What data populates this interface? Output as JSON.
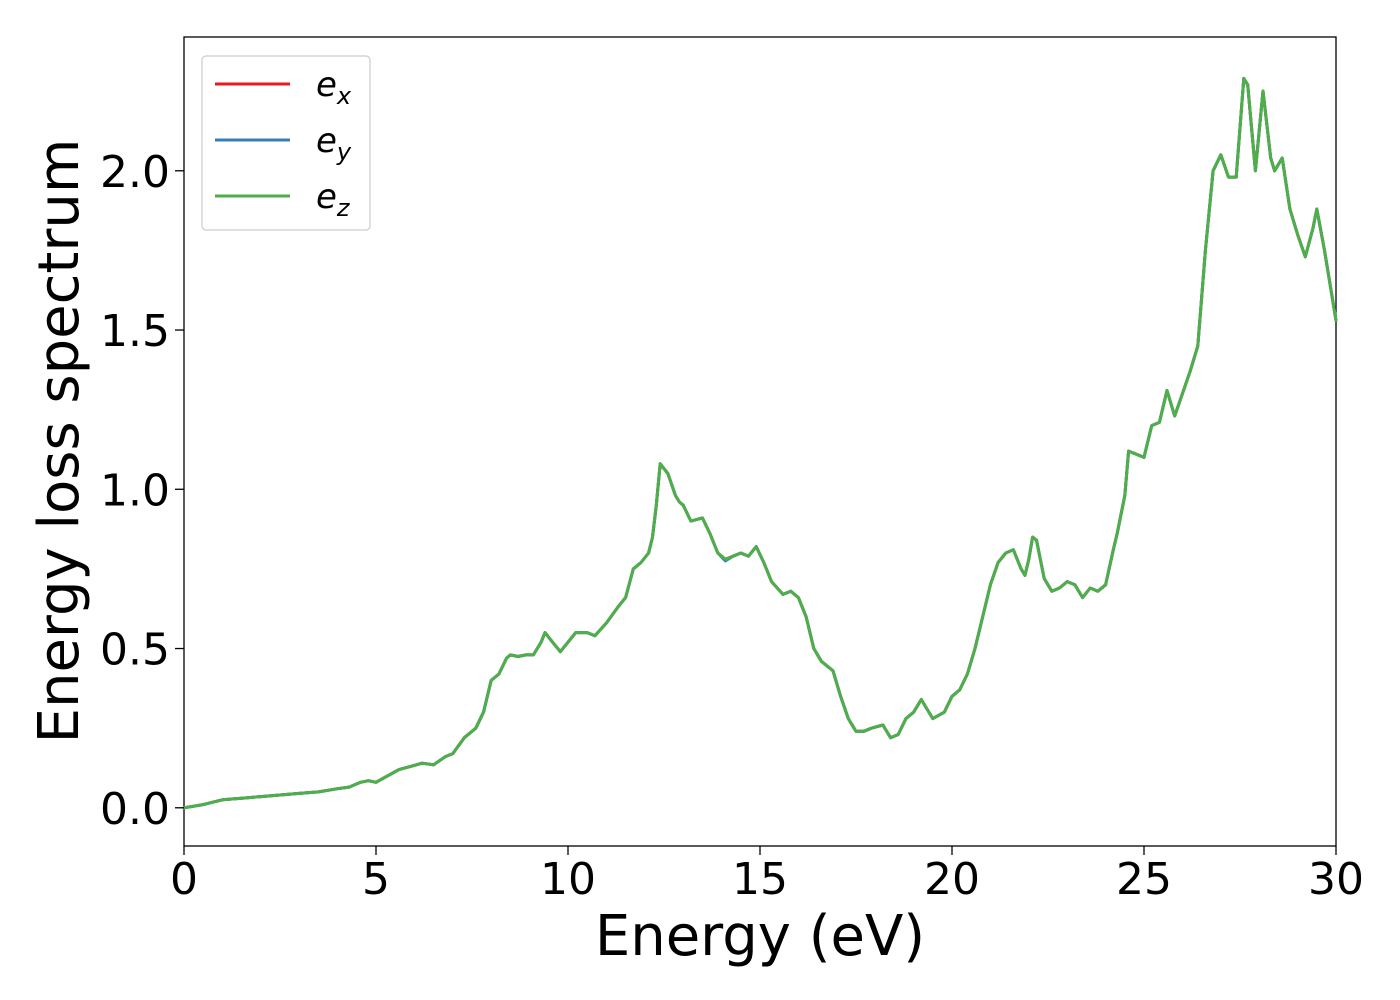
{
  "chart_data": {
    "type": "line",
    "title": "",
    "xlabel": "Energy (eV)",
    "ylabel": "Energy loss spectrum",
    "xlim": [
      0,
      30
    ],
    "ylim": [
      -0.12,
      2.42
    ],
    "xticks": [
      0,
      5,
      10,
      15,
      20,
      25,
      30
    ],
    "xtick_labels": [
      "0",
      "5",
      "10",
      "15",
      "20",
      "25",
      "30"
    ],
    "yticks": [
      0.0,
      0.5,
      1.0,
      1.5,
      2.0
    ],
    "ytick_labels": [
      "0.0",
      "0.5",
      "1.0",
      "1.5",
      "2.0"
    ],
    "grid": false,
    "legend": "top-left",
    "x": [
      0,
      0.5,
      1.0,
      1.5,
      2.0,
      2.5,
      3.0,
      3.5,
      4.0,
      4.3,
      4.6,
      4.8,
      5.0,
      5.3,
      5.6,
      5.9,
      6.2,
      6.5,
      6.8,
      7.0,
      7.3,
      7.6,
      7.8,
      8.0,
      8.2,
      8.4,
      8.5,
      8.7,
      8.9,
      9.1,
      9.3,
      9.4,
      9.6,
      9.8,
      10.0,
      10.2,
      10.5,
      10.7,
      11.0,
      11.3,
      11.5,
      11.7,
      11.9,
      12.1,
      12.2,
      12.3,
      12.4,
      12.6,
      12.8,
      12.9,
      13.0,
      13.2,
      13.5,
      13.7,
      13.9,
      14.1,
      14.3,
      14.5,
      14.7,
      14.9,
      15.1,
      15.3,
      15.6,
      15.8,
      16.0,
      16.2,
      16.4,
      16.6,
      16.9,
      17.1,
      17.3,
      17.5,
      17.7,
      17.9,
      18.2,
      18.4,
      18.6,
      18.8,
      19.0,
      19.2,
      19.3,
      19.5,
      19.8,
      20.0,
      20.2,
      20.4,
      20.6,
      20.8,
      21.0,
      21.2,
      21.4,
      21.6,
      21.8,
      21.9,
      22.0,
      22.1,
      22.2,
      22.4,
      22.6,
      22.8,
      23.0,
      23.2,
      23.4,
      23.6,
      23.8,
      24.0,
      24.2,
      24.3,
      24.5,
      24.6,
      24.8,
      25.0,
      25.2,
      25.4,
      25.6,
      25.8,
      26.0,
      26.2,
      26.4,
      26.6,
      26.8,
      27.0,
      27.2,
      27.4,
      27.6,
      27.7,
      27.9,
      28.1,
      28.3,
      28.4,
      28.6,
      28.8,
      29.0,
      29.2,
      29.4,
      29.5,
      29.7,
      30.0
    ],
    "series": [
      {
        "name": "e_x",
        "color": "#e41a1c",
        "values": [
          0.0,
          0.01,
          0.025,
          0.03,
          0.035,
          0.04,
          0.045,
          0.05,
          0.06,
          0.065,
          0.08,
          0.085,
          0.08,
          0.1,
          0.12,
          0.13,
          0.14,
          0.135,
          0.16,
          0.17,
          0.22,
          0.25,
          0.3,
          0.4,
          0.42,
          0.47,
          0.48,
          0.475,
          0.48,
          0.48,
          0.52,
          0.55,
          0.52,
          0.49,
          0.52,
          0.55,
          0.55,
          0.54,
          0.58,
          0.63,
          0.66,
          0.75,
          0.77,
          0.8,
          0.85,
          0.95,
          1.08,
          1.05,
          0.98,
          0.96,
          0.95,
          0.9,
          0.91,
          0.86,
          0.8,
          0.78,
          0.79,
          0.8,
          0.79,
          0.82,
          0.77,
          0.71,
          0.67,
          0.68,
          0.66,
          0.6,
          0.5,
          0.46,
          0.43,
          0.35,
          0.28,
          0.24,
          0.24,
          0.25,
          0.26,
          0.22,
          0.23,
          0.28,
          0.3,
          0.34,
          0.32,
          0.28,
          0.3,
          0.35,
          0.37,
          0.42,
          0.5,
          0.6,
          0.7,
          0.77,
          0.8,
          0.81,
          0.75,
          0.73,
          0.78,
          0.85,
          0.84,
          0.72,
          0.68,
          0.69,
          0.71,
          0.7,
          0.66,
          0.69,
          0.68,
          0.7,
          0.81,
          0.86,
          0.98,
          1.12,
          1.11,
          1.1,
          1.2,
          1.21,
          1.31,
          1.23,
          1.3,
          1.37,
          1.45,
          1.75,
          2.0,
          2.05,
          1.98,
          1.98,
          2.29,
          2.27,
          2.0,
          2.25,
          2.04,
          2.0,
          2.04,
          1.88,
          1.8,
          1.73,
          1.82,
          1.88,
          1.75,
          1.53
        ]
      },
      {
        "name": "e_y",
        "color": "#377eb8",
        "values": [
          0.0,
          0.01,
          0.025,
          0.03,
          0.035,
          0.04,
          0.045,
          0.05,
          0.06,
          0.065,
          0.08,
          0.085,
          0.08,
          0.1,
          0.12,
          0.13,
          0.14,
          0.135,
          0.16,
          0.17,
          0.22,
          0.25,
          0.3,
          0.4,
          0.42,
          0.47,
          0.48,
          0.475,
          0.48,
          0.48,
          0.52,
          0.55,
          0.52,
          0.49,
          0.52,
          0.55,
          0.55,
          0.54,
          0.58,
          0.63,
          0.66,
          0.75,
          0.77,
          0.8,
          0.85,
          0.95,
          1.08,
          1.05,
          0.98,
          0.96,
          0.95,
          0.9,
          0.91,
          0.86,
          0.8,
          0.775,
          0.79,
          0.8,
          0.79,
          0.82,
          0.77,
          0.71,
          0.67,
          0.68,
          0.66,
          0.6,
          0.5,
          0.46,
          0.43,
          0.35,
          0.28,
          0.24,
          0.24,
          0.25,
          0.26,
          0.22,
          0.23,
          0.28,
          0.3,
          0.34,
          0.32,
          0.28,
          0.3,
          0.35,
          0.37,
          0.42,
          0.5,
          0.6,
          0.7,
          0.77,
          0.8,
          0.81,
          0.75,
          0.73,
          0.78,
          0.85,
          0.84,
          0.72,
          0.68,
          0.69,
          0.71,
          0.7,
          0.66,
          0.69,
          0.68,
          0.7,
          0.81,
          0.86,
          0.98,
          1.12,
          1.11,
          1.1,
          1.2,
          1.21,
          1.31,
          1.23,
          1.3,
          1.37,
          1.45,
          1.75,
          2.0,
          2.05,
          1.98,
          1.98,
          2.29,
          2.27,
          2.0,
          2.25,
          2.04,
          2.0,
          2.04,
          1.88,
          1.8,
          1.73,
          1.82,
          1.88,
          1.75,
          1.53
        ]
      },
      {
        "name": "e_z",
        "color": "#4daf4a",
        "values": [
          0.0,
          0.01,
          0.025,
          0.03,
          0.035,
          0.04,
          0.045,
          0.05,
          0.06,
          0.065,
          0.08,
          0.085,
          0.08,
          0.1,
          0.12,
          0.13,
          0.14,
          0.135,
          0.16,
          0.17,
          0.22,
          0.25,
          0.3,
          0.4,
          0.42,
          0.47,
          0.48,
          0.475,
          0.48,
          0.48,
          0.52,
          0.55,
          0.52,
          0.49,
          0.52,
          0.55,
          0.55,
          0.54,
          0.58,
          0.63,
          0.66,
          0.75,
          0.77,
          0.8,
          0.85,
          0.95,
          1.08,
          1.05,
          0.98,
          0.96,
          0.95,
          0.9,
          0.91,
          0.86,
          0.8,
          0.78,
          0.79,
          0.8,
          0.79,
          0.82,
          0.77,
          0.71,
          0.67,
          0.68,
          0.66,
          0.6,
          0.5,
          0.46,
          0.43,
          0.35,
          0.28,
          0.24,
          0.24,
          0.25,
          0.26,
          0.22,
          0.23,
          0.28,
          0.3,
          0.34,
          0.32,
          0.28,
          0.3,
          0.35,
          0.37,
          0.42,
          0.5,
          0.6,
          0.7,
          0.77,
          0.8,
          0.81,
          0.75,
          0.73,
          0.78,
          0.85,
          0.84,
          0.72,
          0.68,
          0.69,
          0.71,
          0.7,
          0.66,
          0.69,
          0.68,
          0.7,
          0.81,
          0.86,
          0.98,
          1.12,
          1.11,
          1.1,
          1.2,
          1.21,
          1.31,
          1.23,
          1.3,
          1.37,
          1.45,
          1.75,
          2.0,
          2.05,
          1.98,
          1.98,
          2.29,
          2.27,
          2.0,
          2.25,
          2.04,
          2.0,
          2.04,
          1.88,
          1.8,
          1.73,
          1.82,
          1.88,
          1.75,
          1.53
        ]
      }
    ],
    "legend_entries": [
      {
        "base": "e",
        "sub": "x",
        "color": "#e41a1c"
      },
      {
        "base": "e",
        "sub": "y",
        "color": "#377eb8"
      },
      {
        "base": "e",
        "sub": "z",
        "color": "#4daf4a"
      }
    ]
  }
}
